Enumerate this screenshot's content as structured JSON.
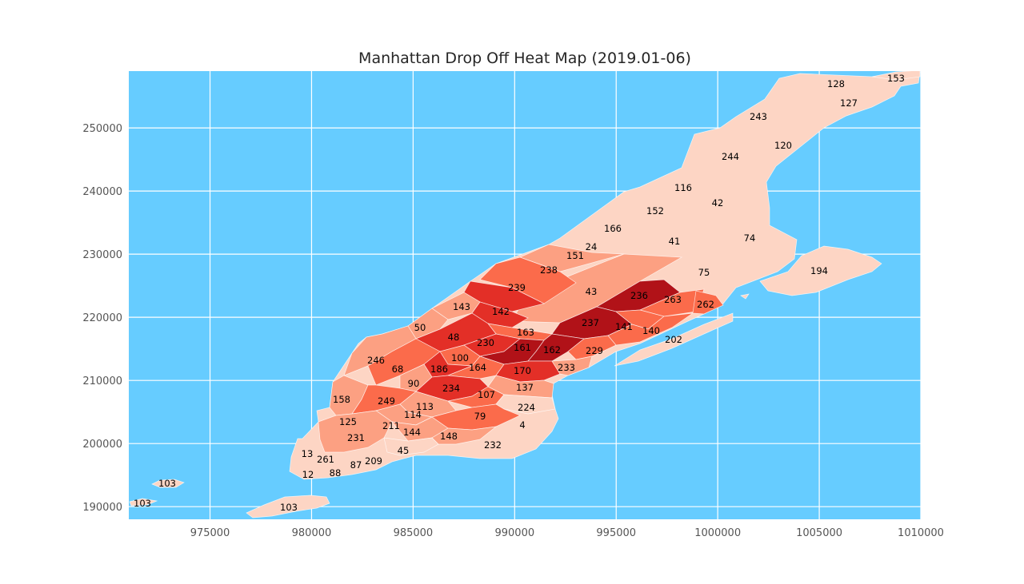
{
  "chart_data": {
    "type": "choropleth_map",
    "title": "Manhattan Drop Off Heat Map (2019.01-06)",
    "xlabel": "",
    "ylabel": "",
    "xlim": [
      971000,
      1010000
    ],
    "ylim": [
      188000,
      259000
    ],
    "x_ticks": [
      975000,
      980000,
      985000,
      990000,
      995000,
      1000000,
      1005000,
      1010000
    ],
    "y_ticks": [
      190000,
      200000,
      210000,
      220000,
      230000,
      240000,
      250000
    ],
    "grid": true,
    "colors": {
      "background": "#66ccff",
      "land": "#fdd5c4",
      "grid": "#ffffff"
    },
    "color_scale": [
      "#fdd5c4",
      "#fca082",
      "#fb6b4b",
      "#e32f27",
      "#b11218"
    ],
    "zones": [
      {
        "id": "153",
        "level": 0
      },
      {
        "id": "128",
        "level": 0
      },
      {
        "id": "127",
        "level": 0
      },
      {
        "id": "243",
        "level": 0
      },
      {
        "id": "120",
        "level": 0
      },
      {
        "id": "244",
        "level": 0
      },
      {
        "id": "116",
        "level": 0
      },
      {
        "id": "42",
        "level": 0
      },
      {
        "id": "152",
        "level": 0
      },
      {
        "id": "166",
        "level": 0
      },
      {
        "id": "74",
        "level": 0
      },
      {
        "id": "41",
        "level": 0
      },
      {
        "id": "24",
        "level": 0
      },
      {
        "id": "151",
        "level": 1
      },
      {
        "id": "194",
        "level": 0
      },
      {
        "id": "75",
        "level": 0
      },
      {
        "id": "238",
        "level": 2
      },
      {
        "id": "239",
        "level": 3
      },
      {
        "id": "43",
        "level": 1
      },
      {
        "id": "236",
        "level": 4
      },
      {
        "id": "263",
        "level": 2
      },
      {
        "id": "262",
        "level": 1
      },
      {
        "id": "143",
        "level": 1
      },
      {
        "id": "142",
        "level": 3
      },
      {
        "id": "237",
        "level": 4
      },
      {
        "id": "141",
        "level": 2
      },
      {
        "id": "140",
        "level": 2
      },
      {
        "id": "50",
        "level": 1
      },
      {
        "id": "163",
        "level": 2
      },
      {
        "id": "202",
        "level": 0
      },
      {
        "id": "48",
        "level": 3
      },
      {
        "id": "230",
        "level": 3
      },
      {
        "id": "161",
        "level": 4
      },
      {
        "id": "162",
        "level": 4
      },
      {
        "id": "229",
        "level": 2
      },
      {
        "id": "246",
        "level": 1
      },
      {
        "id": "100",
        "level": 2
      },
      {
        "id": "68",
        "level": 2
      },
      {
        "id": "186",
        "level": 3
      },
      {
        "id": "164",
        "level": 2
      },
      {
        "id": "170",
        "level": 3
      },
      {
        "id": "233",
        "level": 1
      },
      {
        "id": "90",
        "level": 1
      },
      {
        "id": "234",
        "level": 3
      },
      {
        "id": "137",
        "level": 1
      },
      {
        "id": "158",
        "level": 1
      },
      {
        "id": "249",
        "level": 2
      },
      {
        "id": "107",
        "level": 2
      },
      {
        "id": "113",
        "level": 1
      },
      {
        "id": "224",
        "level": 0
      },
      {
        "id": "114",
        "level": 1
      },
      {
        "id": "79",
        "level": 2
      },
      {
        "id": "125",
        "level": 0
      },
      {
        "id": "211",
        "level": 0
      },
      {
        "id": "4",
        "level": 0
      },
      {
        "id": "144",
        "level": 1
      },
      {
        "id": "231",
        "level": 1
      },
      {
        "id": "148",
        "level": 1
      },
      {
        "id": "232",
        "level": 0
      },
      {
        "id": "13",
        "level": 0
      },
      {
        "id": "45",
        "level": 0
      },
      {
        "id": "261",
        "level": 0
      },
      {
        "id": "209",
        "level": 0
      },
      {
        "id": "87",
        "level": 0
      },
      {
        "id": "88",
        "level": 0
      },
      {
        "id": "12",
        "level": 0
      },
      {
        "id": "103",
        "level": 0
      }
    ]
  }
}
